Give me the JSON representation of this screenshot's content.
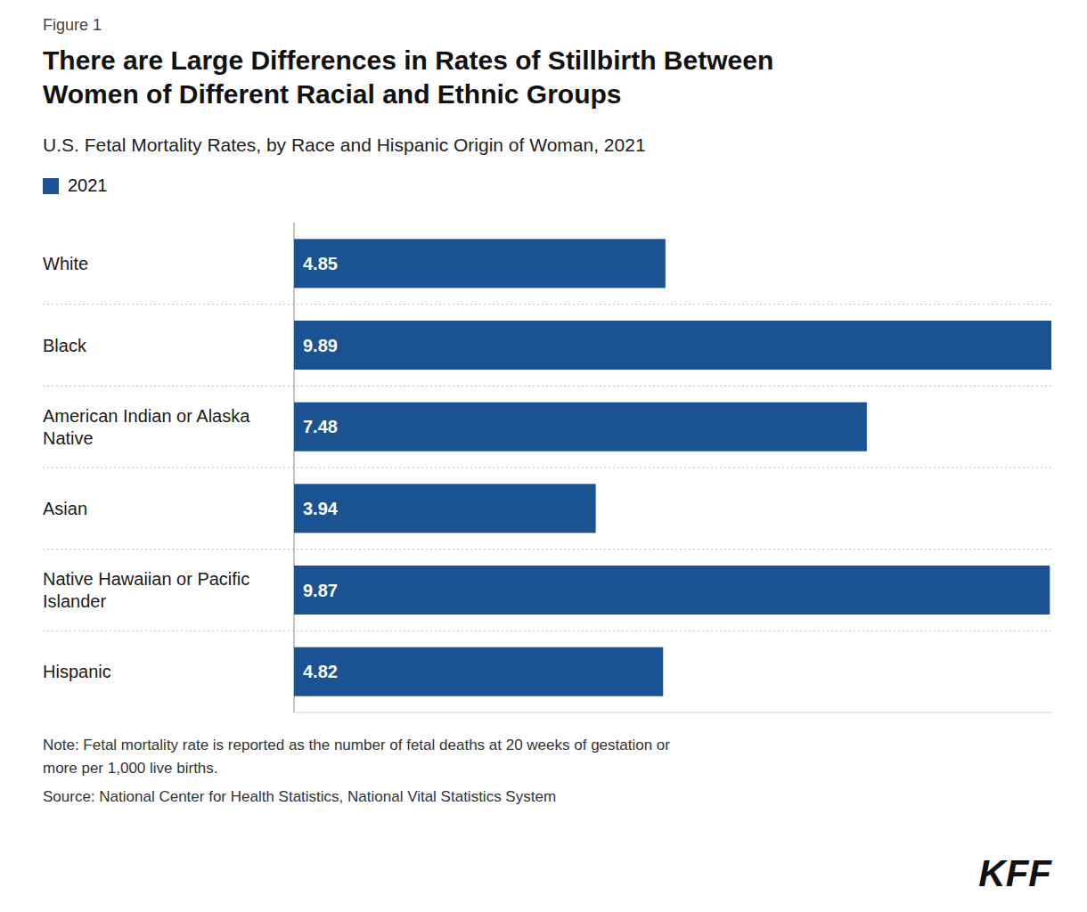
{
  "chart_data": {
    "type": "bar",
    "orientation": "horizontal",
    "title": "There are Large Differences in Rates of Stillbirth Between\nWomen of Different Racial and Ethnic Groups",
    "subtitle": "U.S. Fetal Mortality Rates, by Race and Hispanic Origin of Woman, 2021",
    "categories": [
      "White",
      "Black",
      "American Indian or Alaska\nNative",
      "Asian",
      "Native Hawaiian or Pacific\nIslander",
      "Hispanic"
    ],
    "series": [
      {
        "name": "2021",
        "color": "#1a5292",
        "values": [
          4.85,
          9.89,
          7.48,
          3.94,
          9.87,
          4.82
        ]
      }
    ],
    "xlim": [
      0,
      9.89
    ],
    "data_labels": true,
    "tick_labels": "y",
    "grid": false,
    "legend": "upper left",
    "annotations": [
      "Figure 1",
      "Note: Fetal mortality rate is reported as the number of fetal deaths at 20 weeks of gestation or",
      "more per 1,000 live births.",
      "Source: National Center for Health Statistics, National Vital Statistics System",
      "KFF"
    ]
  }
}
